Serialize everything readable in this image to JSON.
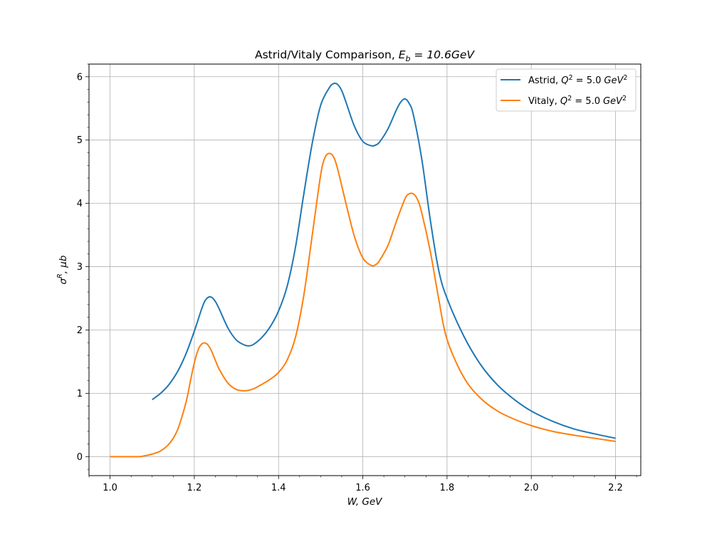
{
  "chart_data": {
    "type": "line",
    "title": {
      "main": "Astrid/Vitaly Comparison, ",
      "sym": "E",
      "sub": "b",
      "rest": " = 10.6GeV"
    },
    "xlabel": "W, GeV",
    "ylabel": {
      "base": "σ",
      "sup": "R",
      "rest": ", μb"
    },
    "xlim": [
      0.95,
      2.26
    ],
    "ylim": [
      -0.3,
      6.2
    ],
    "xticks": [
      "1.0",
      "1.2",
      "1.4",
      "1.6",
      "1.8",
      "2.0",
      "2.2"
    ],
    "yticks": [
      "0",
      "1",
      "2",
      "3",
      "4",
      "5",
      "6"
    ],
    "grid": true,
    "legend_position": "top-right",
    "series": [
      {
        "name": {
          "pre": "Astrid, ",
          "sym": "Q",
          "sup": "2",
          "mid": " = 5.0",
          "unit": "GeV",
          "sup2": "2"
        },
        "color": "#1f77b4",
        "x": [
          1.1,
          1.12,
          1.14,
          1.16,
          1.18,
          1.2,
          1.22,
          1.23,
          1.24,
          1.25,
          1.26,
          1.28,
          1.3,
          1.32,
          1.33,
          1.34,
          1.36,
          1.38,
          1.4,
          1.42,
          1.44,
          1.46,
          1.48,
          1.5,
          1.52,
          1.53,
          1.54,
          1.55,
          1.56,
          1.58,
          1.6,
          1.62,
          1.63,
          1.64,
          1.66,
          1.68,
          1.69,
          1.7,
          1.71,
          1.72,
          1.74,
          1.76,
          1.78,
          1.8,
          1.84,
          1.88,
          1.92,
          1.96,
          2.0,
          2.05,
          2.1,
          2.15,
          2.2
        ],
        "y": [
          0.9,
          1.0,
          1.14,
          1.34,
          1.62,
          1.98,
          2.38,
          2.5,
          2.52,
          2.45,
          2.32,
          2.03,
          1.84,
          1.76,
          1.75,
          1.77,
          1.88,
          2.05,
          2.3,
          2.68,
          3.3,
          4.15,
          4.95,
          5.55,
          5.82,
          5.89,
          5.88,
          5.78,
          5.6,
          5.22,
          4.98,
          4.91,
          4.92,
          4.97,
          5.18,
          5.48,
          5.6,
          5.65,
          5.58,
          5.4,
          4.7,
          3.75,
          2.95,
          2.5,
          1.9,
          1.45,
          1.13,
          0.9,
          0.72,
          0.56,
          0.44,
          0.36,
          0.29
        ]
      },
      {
        "name": {
          "pre": "Vitaly, ",
          "sym": "Q",
          "sup": "2",
          "mid": " = 5.0",
          "unit": "GeV",
          "sup2": "2"
        },
        "color": "#ff7f0e",
        "x": [
          1.0,
          1.04,
          1.07,
          1.08,
          1.1,
          1.12,
          1.14,
          1.16,
          1.18,
          1.19,
          1.2,
          1.21,
          1.22,
          1.23,
          1.24,
          1.25,
          1.26,
          1.28,
          1.3,
          1.32,
          1.34,
          1.36,
          1.38,
          1.4,
          1.42,
          1.44,
          1.46,
          1.48,
          1.5,
          1.51,
          1.52,
          1.53,
          1.54,
          1.56,
          1.58,
          1.6,
          1.62,
          1.63,
          1.64,
          1.66,
          1.68,
          1.7,
          1.71,
          1.72,
          1.73,
          1.74,
          1.76,
          1.78,
          1.8,
          1.84,
          1.88,
          1.92,
          1.96,
          2.0,
          2.05,
          2.1,
          2.15,
          2.2
        ],
        "y": [
          0.0,
          0.0,
          0.0,
          0.01,
          0.04,
          0.09,
          0.2,
          0.42,
          0.85,
          1.17,
          1.48,
          1.7,
          1.79,
          1.78,
          1.68,
          1.52,
          1.37,
          1.16,
          1.06,
          1.04,
          1.07,
          1.14,
          1.22,
          1.33,
          1.52,
          1.88,
          2.55,
          3.5,
          4.45,
          4.72,
          4.79,
          4.74,
          4.55,
          4.0,
          3.48,
          3.14,
          3.02,
          3.03,
          3.1,
          3.34,
          3.72,
          4.07,
          4.15,
          4.15,
          4.06,
          3.85,
          3.25,
          2.5,
          1.85,
          1.25,
          0.92,
          0.72,
          0.59,
          0.49,
          0.4,
          0.34,
          0.29,
          0.24
        ]
      }
    ]
  }
}
